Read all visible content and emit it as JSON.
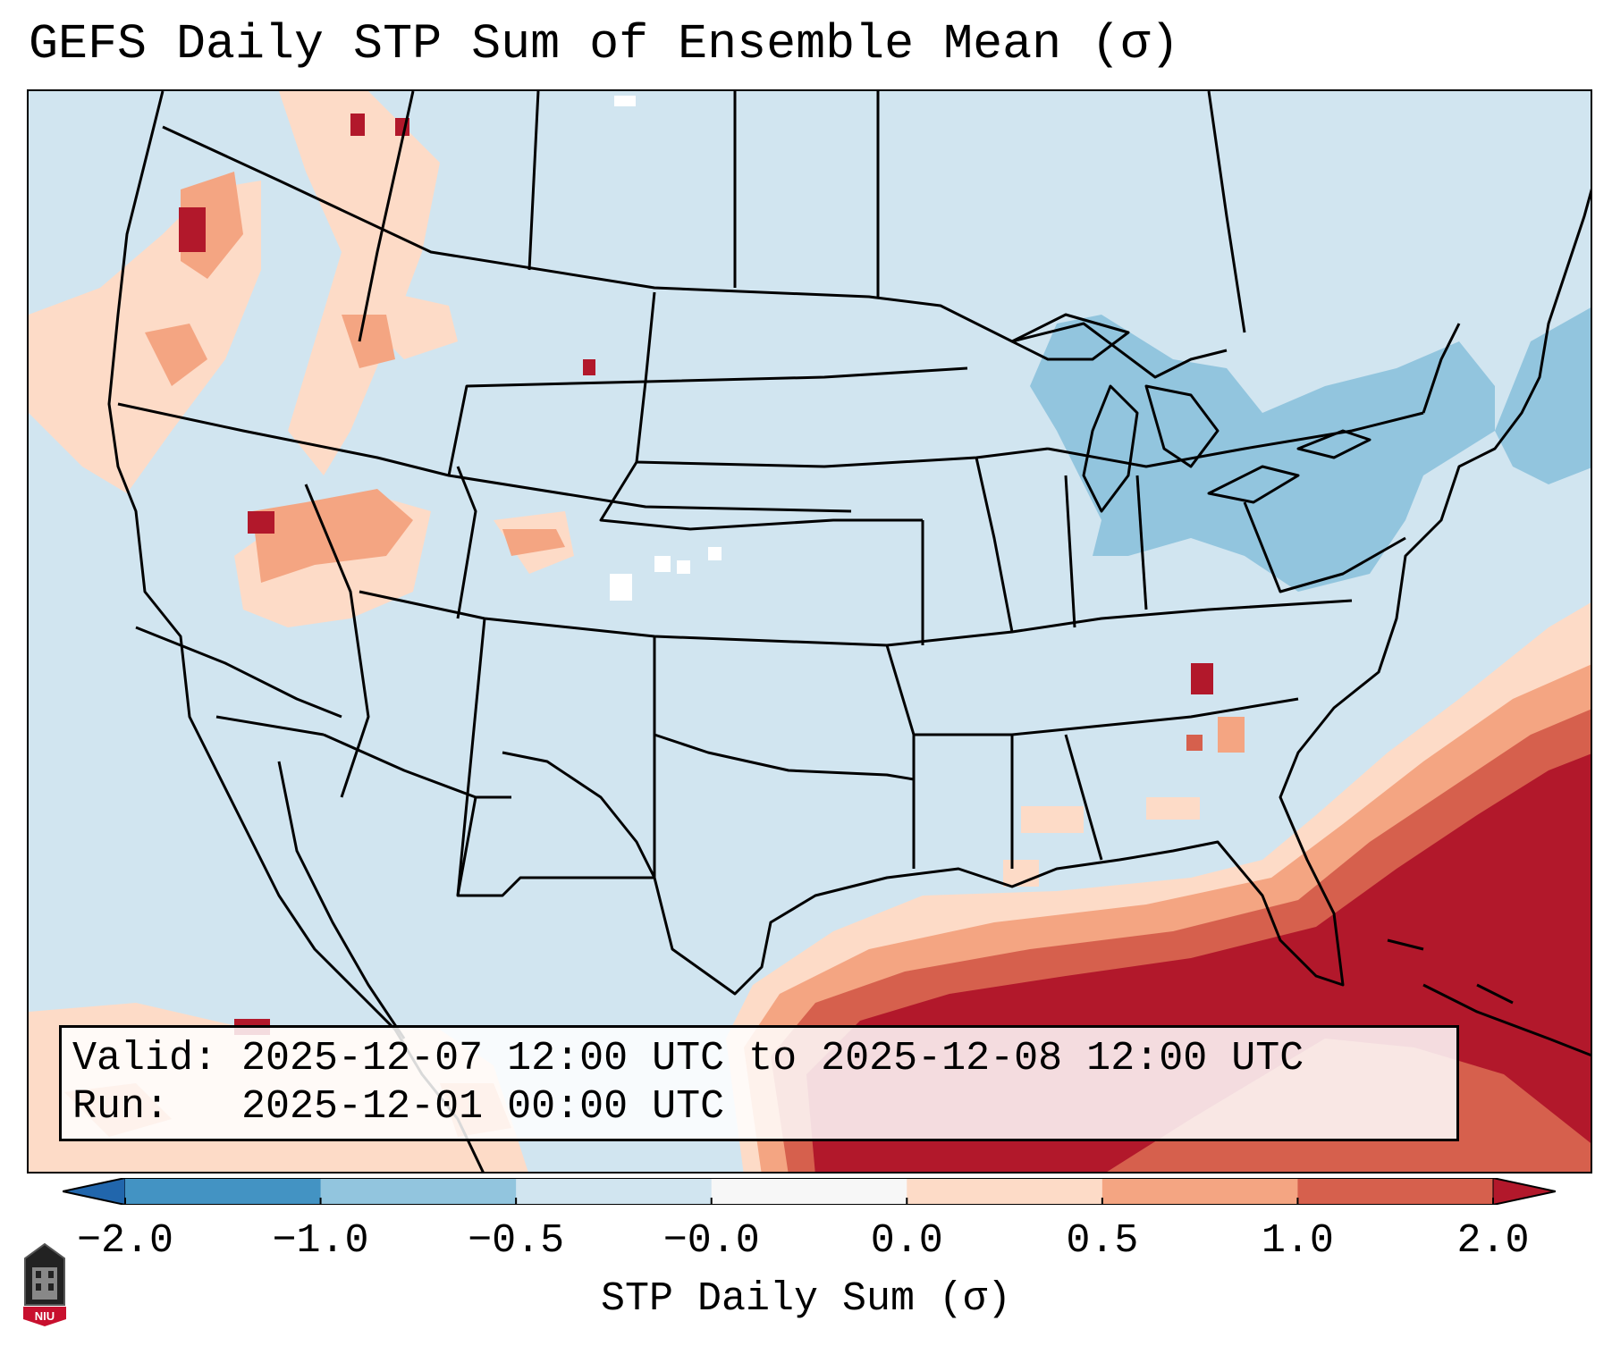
{
  "title": "GEFS Daily STP Sum of Ensemble Mean (σ)",
  "info": {
    "valid_line": "Valid: 2025-12-07 12:00 UTC to 2025-12-08 12:00 UTC",
    "run_line": "Run:   2025-12-01 00:00 UTC"
  },
  "colorbar": {
    "label": "STP Daily Sum (σ)",
    "ticks": [
      "−2.0",
      "−1.0",
      "−0.5",
      "−0.0",
      "0.0",
      "0.5",
      "1.0",
      "2.0"
    ],
    "colors": [
      "#2166ac",
      "#4393c3",
      "#92c5de",
      "#d1e5f0",
      "#f7f7f7",
      "#fddbc7",
      "#f4a582",
      "#d6604d",
      "#b2182b"
    ],
    "extend": "both"
  },
  "logo": {
    "text": "NIU",
    "color": "#c8102e"
  }
}
